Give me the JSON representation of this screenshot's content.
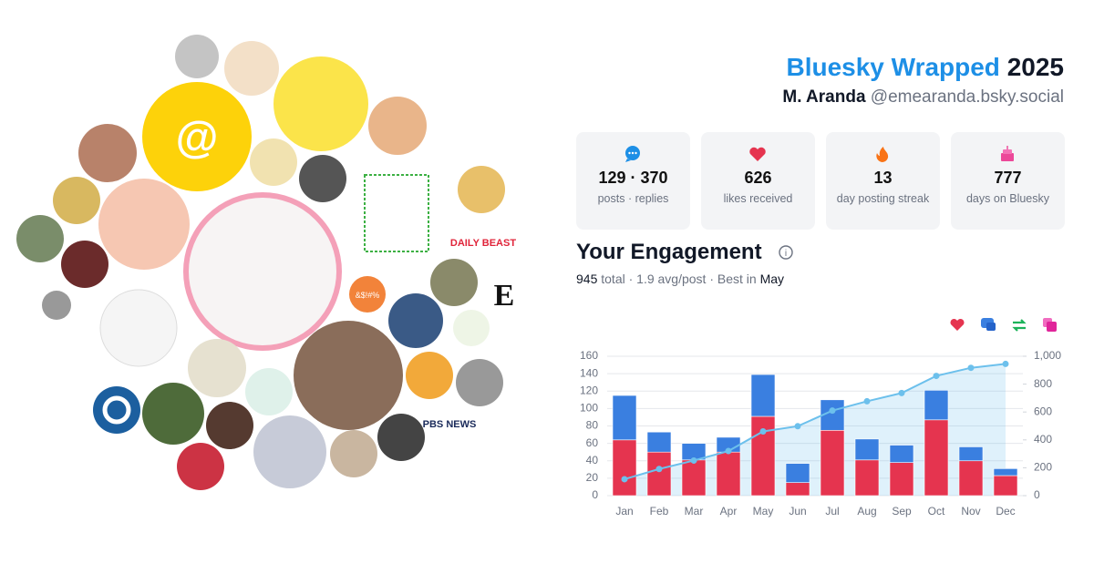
{
  "header": {
    "title": "Bluesky Wrapped",
    "year": "2025",
    "name": "M. Aranda",
    "handle": "@emearanda.bsky.social"
  },
  "stats": [
    {
      "value": "129 · 370",
      "label": "posts · replies"
    },
    {
      "value": 626,
      "label": "likes received"
    },
    {
      "value": 13,
      "label": "day posting streak"
    },
    {
      "value": 777,
      "label": "days on Bluesky"
    }
  ],
  "engagement": {
    "title": "Your Engagement",
    "total": 945,
    "summary": "total · 1.9 avg/post · Best in",
    "best": "May"
  },
  "avatar_labels": [
    "@",
    "DAILY BEAST",
    "E",
    "PBS NEWS",
    "&$!#%"
  ],
  "chart_data": {
    "type": "bar",
    "stacked": true,
    "grid": true,
    "categories": [
      "Jan",
      "Feb",
      "Mar",
      "Apr",
      "May",
      "Jun",
      "Jul",
      "Aug",
      "Sep",
      "Oct",
      "Nov",
      "Dec"
    ],
    "series": [
      {
        "color": "#e5344f",
        "values": [
          64,
          50,
          41,
          50,
          91,
          15,
          75,
          41,
          38,
          87,
          40,
          23
        ]
      },
      {
        "color": "#3a7fe0",
        "values": [
          51,
          23,
          19,
          17,
          48,
          22,
          35,
          24,
          20,
          34,
          16,
          8
        ]
      },
      {
        "type": "line",
        "axis": "y2",
        "color": "#6cc0ec",
        "values": [
          118,
          191,
          252,
          320,
          461,
          498,
          610,
          677,
          736,
          859,
          917,
          945
        ]
      }
    ],
    "ylim": [
      0,
      160
    ],
    "yticks": [
      0,
      20,
      40,
      60,
      80,
      100,
      120,
      140,
      160
    ],
    "y2lim": [
      0,
      1000
    ],
    "y2ticks": [
      0,
      200,
      400,
      600,
      800,
      {
        "value": 1000,
        "label": "1,000"
      }
    ]
  }
}
